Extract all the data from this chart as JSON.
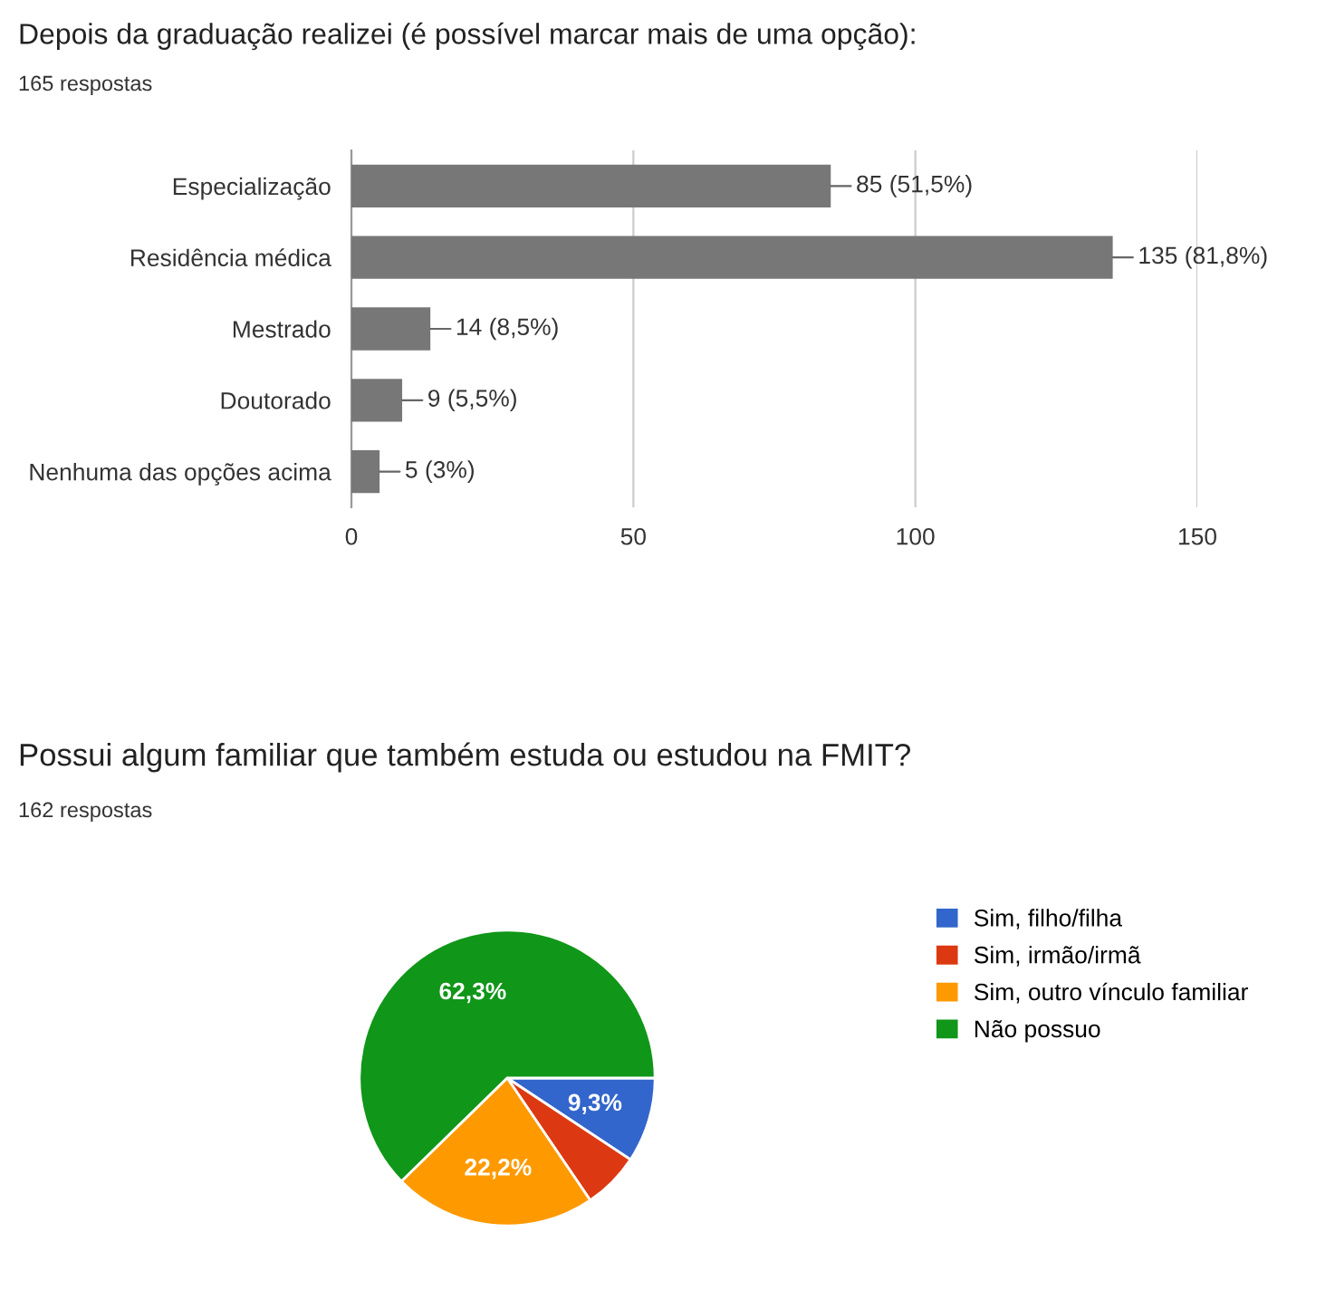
{
  "chart_data": [
    {
      "type": "bar",
      "orientation": "horizontal",
      "title": "Depois da graduação realizei (é possível marcar mais de uma opção):",
      "subtitle": "165 respostas",
      "categories": [
        "Especialização",
        "Residência médica",
        "Mestrado",
        "Doutorado",
        "Nenhuma das opções acima"
      ],
      "values": [
        85,
        135,
        14,
        9,
        5
      ],
      "value_labels": [
        "85 (51,5%)",
        "135 (81,8%)",
        "14 (8,5%)",
        "9 (5,5%)",
        "5 (3%)"
      ],
      "color": "#777777",
      "xlim": [
        0,
        150
      ],
      "xticks": [
        0,
        50,
        100,
        150
      ],
      "grid": "x"
    },
    {
      "type": "pie",
      "title": "Possui algum familiar que também estuda ou estudou na FMIT?",
      "subtitle": "162 respostas",
      "categories": [
        "Sim, filho/filha",
        "Sim, irmão/irmã",
        "Sim, outro vínculo familiar",
        "Não possuo"
      ],
      "values": [
        9.3,
        6.2,
        22.2,
        62.3
      ],
      "value_labels": [
        "9,3%",
        null,
        "22,2%",
        "62,3%"
      ],
      "colors": [
        "#3366cc",
        "#dc3912",
        "#ff9900",
        "#109618"
      ],
      "legend": "right"
    }
  ]
}
